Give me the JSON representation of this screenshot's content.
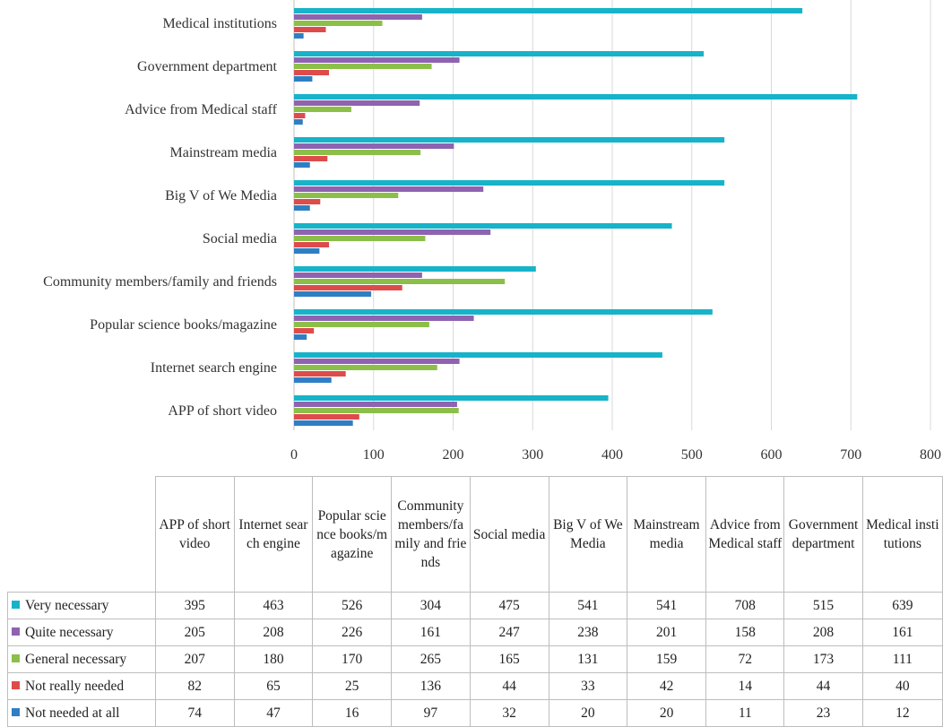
{
  "chart_data": {
    "type": "bar",
    "orientation": "horizontal",
    "categories": [
      "APP of short video",
      "Internet search engine",
      "Popular science books/magazine",
      "Community members/family and friends",
      "Social media",
      "Big V of We Media",
      "Mainstream media",
      "Advice from Medical staff",
      "Government department",
      "Medical institutions"
    ],
    "table_headers": [
      "APP of short video",
      "Internet search engine",
      "Popular science books/magazine",
      "Community members/family and friends",
      "Social media",
      "Big V of We Media",
      "Mainstream media",
      "Advice from Medical staff",
      "Government department",
      "Medical institutions"
    ],
    "series": [
      {
        "name": "Very necessary",
        "color": "#17b3c9",
        "values": [
          395,
          463,
          526,
          304,
          475,
          541,
          541,
          708,
          515,
          639
        ]
      },
      {
        "name": "Quite necessary",
        "color": "#8e63b0",
        "values": [
          205,
          208,
          226,
          161,
          247,
          238,
          201,
          158,
          208,
          161
        ]
      },
      {
        "name": "General necessary",
        "color": "#8cbf4a",
        "values": [
          207,
          180,
          170,
          265,
          165,
          131,
          159,
          72,
          173,
          111
        ]
      },
      {
        "name": "Not really needed",
        "color": "#de4b4b",
        "values": [
          82,
          65,
          25,
          136,
          44,
          33,
          42,
          14,
          44,
          40
        ]
      },
      {
        "name": "Not needed at all",
        "color": "#2f7ec4",
        "values": [
          74,
          47,
          16,
          97,
          32,
          20,
          20,
          11,
          23,
          12
        ]
      }
    ],
    "xlim": [
      0,
      800
    ],
    "xticks": [
      "0",
      "100",
      "200",
      "300",
      "400",
      "500",
      "600",
      "700",
      "800"
    ],
    "grid": true,
    "legend": "data-table below chart"
  }
}
